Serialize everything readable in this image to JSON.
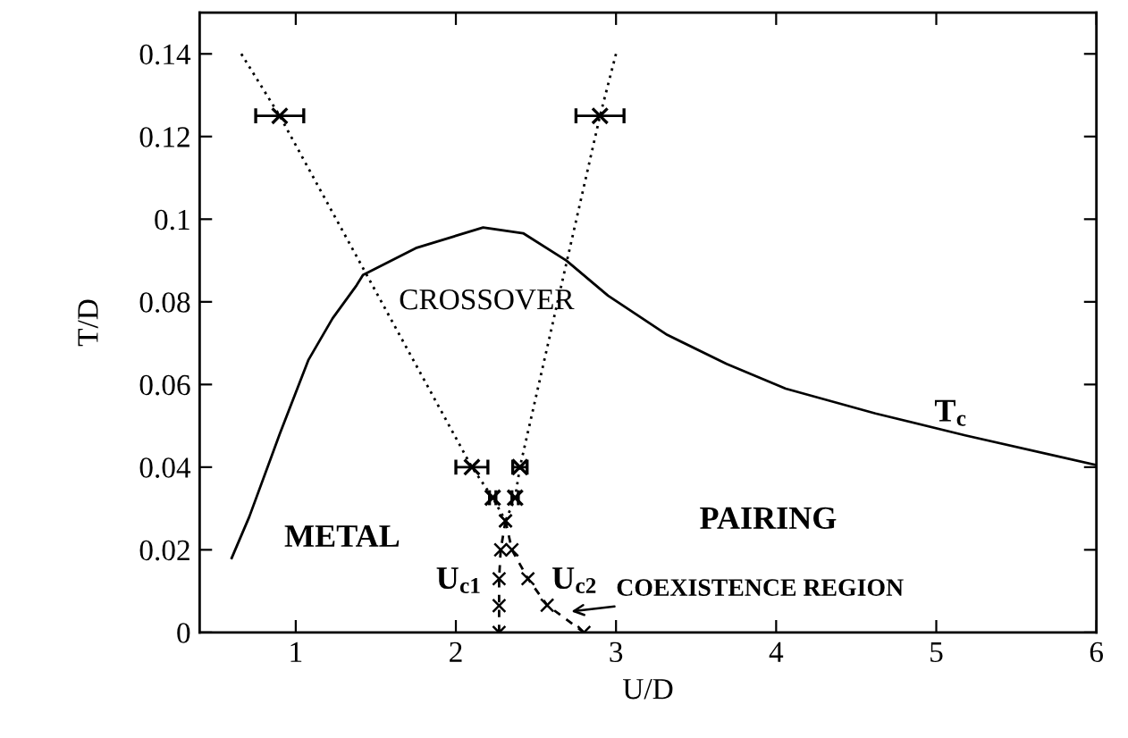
{
  "chart_data": {
    "type": "line",
    "xlabel": "U/D",
    "ylabel": "T/D",
    "xlim": [
      0.4,
      6
    ],
    "ylim": [
      0,
      0.15
    ],
    "xticks": [
      1,
      2,
      3,
      4,
      5,
      6
    ],
    "yticks": [
      0,
      0.02,
      0.04,
      0.06,
      0.08,
      0.1,
      0.12,
      0.14
    ],
    "grid": false,
    "series": [
      {
        "color": "#000000",
        "line_style": "solid",
        "marker": "none",
        "x": [
          0.6,
          0.71,
          0.9,
          1.08,
          1.23,
          1.38,
          1.42,
          1.75,
          2.17,
          2.42,
          2.69,
          2.95,
          3.32,
          3.69,
          4.06,
          4.62,
          5.18,
          6.0
        ],
        "values": [
          0.018,
          0.028,
          0.048,
          0.066,
          0.076,
          0.084,
          0.0865,
          0.093,
          0.098,
          0.0966,
          0.09,
          0.0815,
          0.072,
          0.065,
          0.059,
          0.053,
          0.0477,
          0.0405
        ]
      },
      {
        "type": "line",
        "color": "#000000",
        "line_style": "dotted",
        "marker": "none",
        "x": [
          0.66,
          0.9,
          2.1,
          2.23,
          2.31
        ],
        "values": [
          0.14,
          0.125,
          0.04,
          0.0326,
          0.027
        ]
      },
      {
        "type": "line",
        "color": "#000000",
        "line_style": "dotted",
        "marker": "none",
        "x": [
          3.0,
          2.9,
          2.4,
          2.37,
          2.31
        ],
        "values": [
          0.14,
          0.125,
          0.04,
          0.0326,
          0.027
        ]
      },
      {
        "type": "scatter",
        "color": "#000000",
        "marker": "cross",
        "x": [
          0.9,
          2.9,
          2.1,
          2.4,
          2.23,
          2.37
        ],
        "values": [
          0.125,
          0.125,
          0.04,
          0.04,
          0.0326,
          0.0326
        ],
        "xerrors": [
          0.15,
          0.15,
          0.1,
          0.045,
          0.02,
          0.02
        ]
      },
      {
        "type": "line",
        "color": "#000000",
        "line_style": "dashed",
        "marker": "cross",
        "x": [
          2.31,
          2.28,
          2.27,
          2.27,
          2.27
        ],
        "values": [
          0.027,
          0.02,
          0.013,
          0.0065,
          0
        ]
      },
      {
        "type": "line",
        "color": "#000000",
        "line_style": "dashed",
        "marker": "cross",
        "x": [
          2.31,
          2.35,
          2.45,
          2.57,
          2.8
        ],
        "values": [
          0.027,
          0.02,
          0.013,
          0.0066,
          0
        ]
      }
    ],
    "annotations": [
      "CROSSOVER",
      "METAL",
      "PAIRING",
      "T$_{c}$",
      "U$_{c1}$",
      "U$_{c2}$",
      "COEXISTENCE REGION"
    ]
  }
}
